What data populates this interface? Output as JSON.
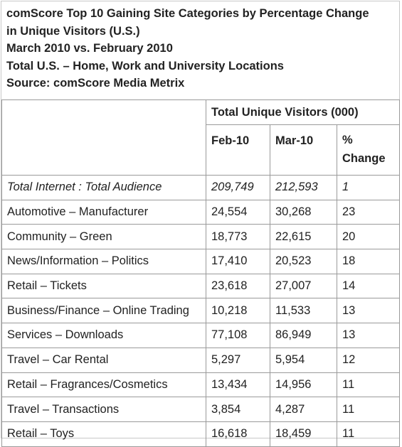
{
  "header": {
    "title_line1": "comScore Top 10 Gaining Site Categories by Percentage Change",
    "title_line2": "in Unique Visitors (U.S.)",
    "period": "March 2010 vs. February 2010",
    "locations": "Total U.S. – Home, Work and University Locations",
    "source": "Source: comScore Media Metrix"
  },
  "table": {
    "group_header": "Total Unique Visitors (000)",
    "columns": {
      "feb": "Feb-10",
      "mar": "Mar-10",
      "change_line1": "%",
      "change_line2": "Change"
    },
    "rows": [
      {
        "category": "Total Internet : Total Audience",
        "feb": "209,749",
        "mar": "212,593",
        "change": "1"
      },
      {
        "category": "Automotive – Manufacturer",
        "feb": "24,554",
        "mar": "30,268",
        "change": "23"
      },
      {
        "category": "Community – Green",
        "feb": "18,773",
        "mar": "22,615",
        "change": "20"
      },
      {
        "category": "News/Information – Politics",
        "feb": "17,410",
        "mar": "20,523",
        "change": "18"
      },
      {
        "category": "Retail – Tickets",
        "feb": "23,618",
        "mar": "27,007",
        "change": "14"
      },
      {
        "category": "Business/Finance – Online Trading",
        "feb": "10,218",
        "mar": "11,533",
        "change": "13"
      },
      {
        "category": "Services – Downloads",
        "feb": "77,108",
        "mar": "86,949",
        "change": "13"
      },
      {
        "category": "Travel – Car Rental",
        "feb": "5,297",
        "mar": "5,954",
        "change": "12"
      },
      {
        "category": "Retail – Fragrances/Cosmetics",
        "feb": "13,434",
        "mar": "14,956",
        "change": "11"
      },
      {
        "category": "Travel – Transactions",
        "feb": "3,854",
        "mar": "4,287",
        "change": "11"
      },
      {
        "category": "Retail – Toys",
        "feb": "16,618",
        "mar": "18,459",
        "change": "11"
      }
    ]
  }
}
